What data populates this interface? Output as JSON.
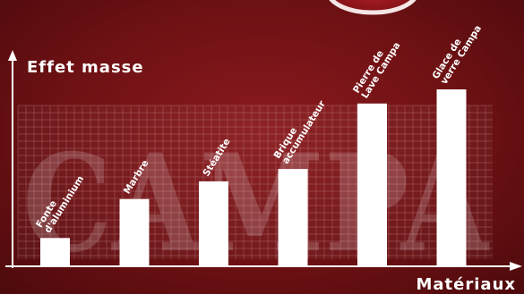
{
  "chart_data": {
    "type": "bar",
    "title": "",
    "ylabel": "Effet masse",
    "xlabel": "Matériaux",
    "categories": [
      [
        "Fonte",
        "d'aluminium"
      ],
      [
        "Marbre"
      ],
      [
        "Stéatite"
      ],
      [
        "Brique",
        "accumulateur"
      ],
      [
        "Pierre de",
        "Lave Campa"
      ],
      [
        "Glace de",
        "verre Campa"
      ]
    ],
    "values": [
      16,
      38,
      48,
      55,
      92,
      100
    ],
    "ylim": [
      0,
      130
    ],
    "grid": true,
    "watermark": "CAMPA"
  },
  "colors": {
    "bar": "#ffffff",
    "axis": "#ffffff",
    "background": "#6e1114",
    "grid": "#c88a8c"
  }
}
